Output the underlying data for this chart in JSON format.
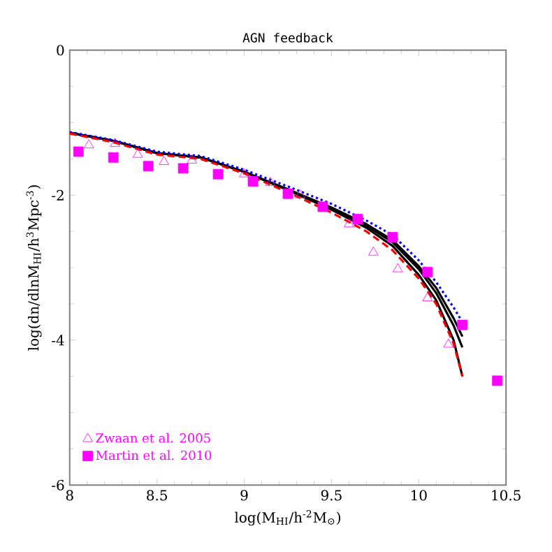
{
  "chart_data": {
    "type": "line",
    "title": "AGN feedback",
    "xlabel": "log(M$_{HI}$/h$^{-2}$M$_{⊙}$)",
    "ylabel": "log(dn/dlnM$_{HI}$/h$^{3}$Mpc$^{-3}$)",
    "xlim": [
      8,
      10.5
    ],
    "ylim": [
      -6,
      0
    ],
    "xticks": [
      8,
      8.5,
      9,
      9.5,
      10,
      10.5
    ],
    "yticks": [
      -6,
      -4,
      -2,
      0
    ],
    "legend": "bottom left",
    "grid": false,
    "series": [
      {
        "color": "#000000",
        "line_style": "solid",
        "x": [
          8,
          8.25,
          8.5,
          8.75,
          9.0,
          9.25,
          9.5,
          9.7,
          9.85,
          10.0,
          10.1,
          10.2,
          10.25
        ],
        "values": [
          -1.14,
          -1.25,
          -1.42,
          -1.48,
          -1.68,
          -1.93,
          -2.2,
          -2.45,
          -2.7,
          -3.1,
          -3.45,
          -4.0,
          -4.5
        ]
      },
      {
        "color": "#000000",
        "line_style": "solid",
        "x": [
          8,
          8.25,
          8.5,
          8.75,
          9.0,
          9.25,
          9.5,
          9.7,
          9.85,
          10.0,
          10.1,
          10.2,
          10.25
        ],
        "values": [
          -1.14,
          -1.25,
          -1.42,
          -1.48,
          -1.68,
          -1.92,
          -2.18,
          -2.42,
          -2.65,
          -3.02,
          -3.35,
          -3.8,
          -4.1
        ]
      },
      {
        "color": "#000000",
        "line_style": "solid",
        "x": [
          8,
          8.25,
          8.5,
          8.75,
          9.0,
          9.25,
          9.5,
          9.7,
          9.85,
          10.0,
          10.1,
          10.2,
          10.25
        ],
        "values": [
          -1.14,
          -1.25,
          -1.42,
          -1.48,
          -1.68,
          -1.92,
          -2.17,
          -2.4,
          -2.62,
          -2.98,
          -3.28,
          -3.7,
          -3.95
        ]
      },
      {
        "color": "#0000ff",
        "line_style": "dotted",
        "x": [
          8,
          8.25,
          8.5,
          8.75,
          9.0,
          9.25,
          9.5,
          9.7,
          9.85,
          10.0,
          10.1,
          10.2,
          10.25
        ],
        "values": [
          -1.13,
          -1.24,
          -1.4,
          -1.46,
          -1.65,
          -1.88,
          -2.12,
          -2.35,
          -2.55,
          -2.9,
          -3.2,
          -3.55,
          -3.75
        ]
      },
      {
        "color": "#ff0000",
        "line_style": "dashed",
        "x": [
          8,
          8.25,
          8.5,
          8.75,
          9.0,
          9.25,
          9.5,
          9.7,
          9.85,
          10.0,
          10.1,
          10.2,
          10.25
        ],
        "values": [
          -1.15,
          -1.27,
          -1.44,
          -1.5,
          -1.7,
          -1.96,
          -2.24,
          -2.5,
          -2.76,
          -3.15,
          -3.5,
          -4.05,
          -4.5
        ]
      },
      {
        "type": "scatter",
        "name": "Zwaan et al. 2005",
        "color": "#ff00ff",
        "marker": "triangle",
        "x": [
          8.11,
          8.26,
          8.39,
          8.54,
          8.7,
          9.0,
          9.15,
          9.32,
          9.6,
          9.74,
          9.88,
          10.05,
          10.17
        ],
        "values": [
          -1.31,
          -1.29,
          -1.44,
          -1.54,
          -1.52,
          -1.71,
          -1.83,
          -2.0,
          -2.4,
          -2.79,
          -3.02,
          -3.42,
          -4.06
        ]
      },
      {
        "type": "scatter",
        "name": "Martin et al. 2010",
        "color": "#ff00ff",
        "marker": "square",
        "x": [
          8.05,
          8.25,
          8.45,
          8.65,
          8.85,
          9.05,
          9.25,
          9.45,
          9.65,
          9.85,
          10.05,
          10.25,
          10.45
        ],
        "values": [
          -1.4,
          -1.48,
          -1.6,
          -1.63,
          -1.71,
          -1.81,
          -1.98,
          -2.16,
          -2.33,
          -2.58,
          -3.06,
          -3.79,
          -4.56
        ]
      }
    ]
  }
}
